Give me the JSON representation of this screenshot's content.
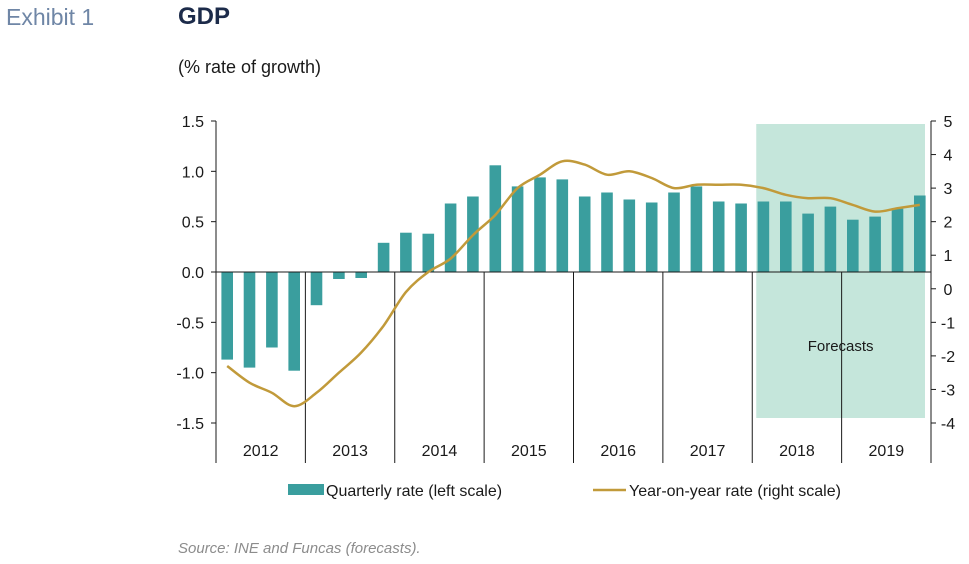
{
  "header": {
    "exhibit": "Exhibit 1",
    "title": "GDP",
    "subtitle": "(% rate of growth)"
  },
  "footer": {
    "source": "Source: INE and Funcas (forecasts)."
  },
  "chart_data": {
    "type": "bar",
    "title": "GDP",
    "subtitle": "(% rate of growth)",
    "years": [
      "2012",
      "2013",
      "2014",
      "2015",
      "2016",
      "2017",
      "2018",
      "2019"
    ],
    "categories": [
      "2012Q1",
      "2012Q2",
      "2012Q3",
      "2012Q4",
      "2013Q1",
      "2013Q2",
      "2013Q3",
      "2013Q4",
      "2014Q1",
      "2014Q2",
      "2014Q3",
      "2014Q4",
      "2015Q1",
      "2015Q2",
      "2015Q3",
      "2015Q4",
      "2016Q1",
      "2016Q2",
      "2016Q3",
      "2016Q4",
      "2017Q1",
      "2017Q2",
      "2017Q3",
      "2017Q4",
      "2018Q1",
      "2018Q2",
      "2018Q3",
      "2018Q4",
      "2019Q1",
      "2019Q2",
      "2019Q3",
      "2019Q4"
    ],
    "series": [
      {
        "name": "Quarterly rate (left scale)",
        "type": "bar",
        "axis": "left",
        "color": "#3a9e9e",
        "values": [
          -0.87,
          -0.95,
          -0.75,
          -0.98,
          -0.33,
          -0.07,
          -0.06,
          0.29,
          0.39,
          0.38,
          0.68,
          0.75,
          1.06,
          0.85,
          0.94,
          0.92,
          0.75,
          0.79,
          0.72,
          0.69,
          0.79,
          0.85,
          0.7,
          0.68,
          0.7,
          0.7,
          0.58,
          0.65,
          0.52,
          0.55,
          0.63,
          0.76
        ]
      },
      {
        "name": "Year-on-year rate (right scale)",
        "type": "line",
        "axis": "right",
        "color": "#c19a3a",
        "values": [
          -2.3,
          -2.8,
          -3.1,
          -3.5,
          -3.1,
          -2.5,
          -1.9,
          -1.1,
          -0.1,
          0.5,
          0.9,
          1.6,
          2.2,
          3.0,
          3.4,
          3.8,
          3.7,
          3.4,
          3.5,
          3.3,
          3.0,
          3.1,
          3.1,
          3.1,
          3.0,
          2.8,
          2.7,
          2.7,
          2.5,
          2.3,
          2.4,
          2.5
        ]
      }
    ],
    "y_left": {
      "min": -1.5,
      "max": 1.5,
      "ticks": [
        "1.5",
        "1.0",
        "0.5",
        "0.0",
        "-0.5",
        "-1.0",
        "-1.5"
      ]
    },
    "y_right": {
      "min": -4,
      "max": 5,
      "ticks": [
        "5",
        "4",
        "3",
        "2",
        "1",
        "0",
        "-1",
        "-2",
        "-3",
        "-4"
      ]
    },
    "forecast_region": {
      "label": "Forecasts",
      "from_category": "2018Q1",
      "color": "#c5e6db"
    },
    "grid": false,
    "legend": "bottom"
  }
}
